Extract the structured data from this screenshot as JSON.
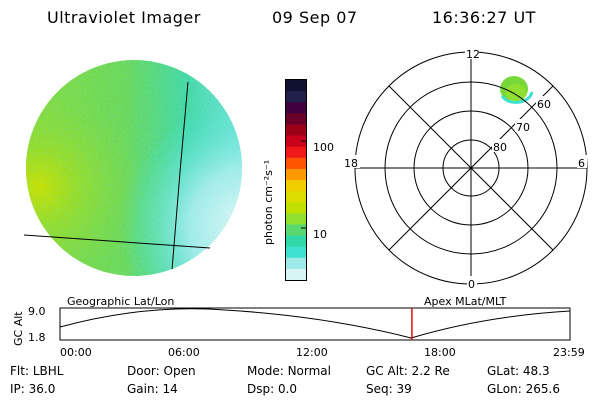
{
  "header": {
    "title": "Ultraviolet Imager",
    "date": "09 Sep 07",
    "time": "16:36:27 UT"
  },
  "colorbar": {
    "unit_label": "photon cm⁻²s⁻¹",
    "ticks": [
      "100",
      "10"
    ],
    "colors": [
      "#101030",
      "#20204a",
      "#400040",
      "#6a0028",
      "#9a0018",
      "#c8001a",
      "#ee1a1a",
      "#ff5500",
      "#ff9900",
      "#f0cc00",
      "#dcdc00",
      "#c0e000",
      "#90e030",
      "#5ad870",
      "#30d8a8",
      "#40e0d0",
      "#9cebe8",
      "#d8f4f4"
    ]
  },
  "polar_plot": {
    "mlt_labels": {
      "top": "12",
      "bottom": "0",
      "left": "18",
      "right": "6"
    },
    "lat_labels": [
      "60",
      "70",
      "80"
    ]
  },
  "timeline": {
    "y_axis_label": "GC Alt",
    "y_ticks": [
      "9.0",
      "1.8"
    ],
    "left_label": "Geographic Lat/Lon",
    "right_label": "Apex MLat/MLT",
    "x_ticks": [
      "00:00",
      "06:00",
      "12:00",
      "18:00",
      "23:59"
    ],
    "current_time_fraction": 0.69
  },
  "info": [
    [
      {
        "label": "Flt:",
        "value": "LBHL"
      },
      {
        "label": "Door:",
        "value": "Open"
      },
      {
        "label": "Mode:",
        "value": "Normal"
      },
      {
        "label": "GC Alt:",
        "value": "2.2 Re"
      },
      {
        "label": "GLat:",
        "value": "48.3"
      }
    ],
    [
      {
        "label": "IP:",
        "value": "36.0"
      },
      {
        "label": "Gain:",
        "value": "14"
      },
      {
        "label": "Dsp:",
        "value": "0.0"
      },
      {
        "label": "Seq:",
        "value": "39"
      },
      {
        "label": "GLon:",
        "value": "265.6"
      }
    ]
  ]
}
